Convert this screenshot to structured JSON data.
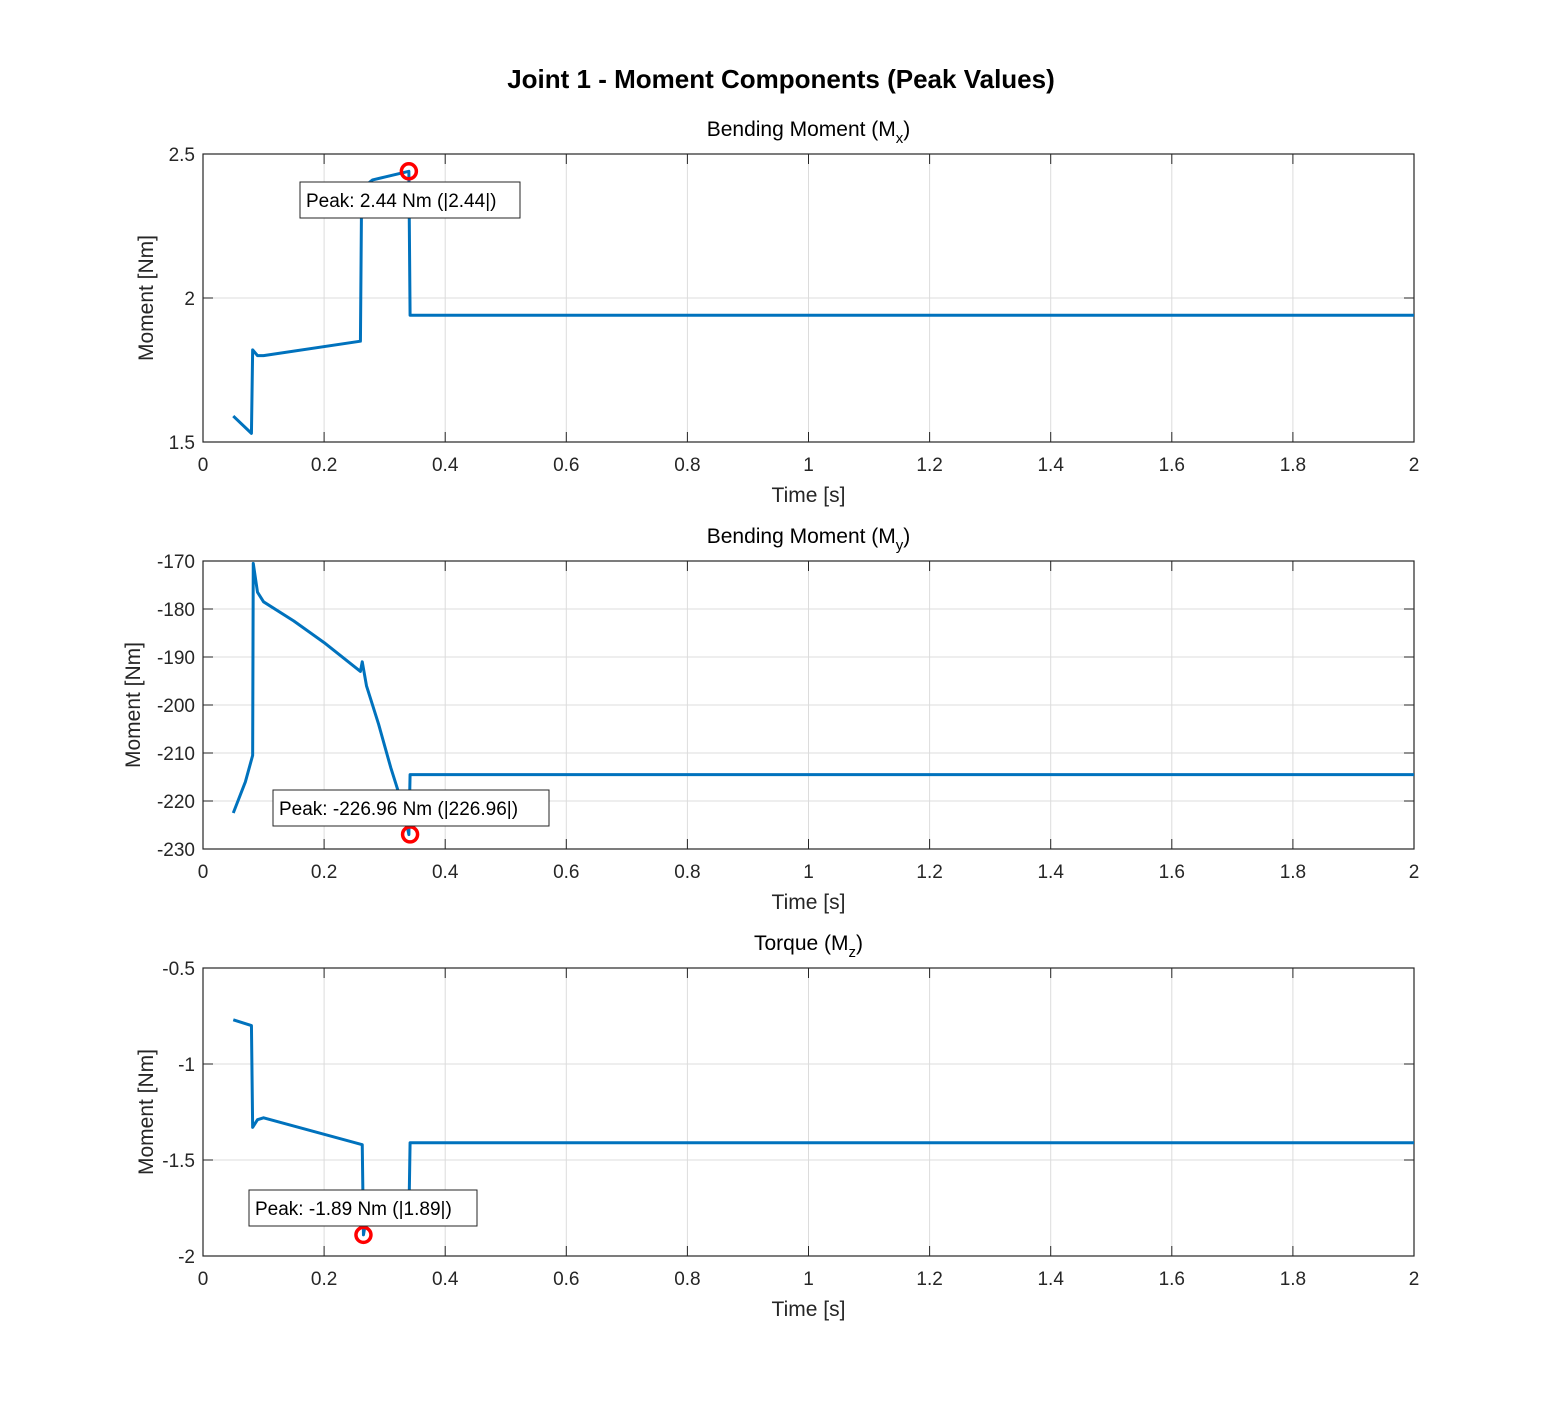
{
  "chart_data": [
    {
      "type": "line",
      "title": "Bending Moment (M",
      "title_sub": "x",
      "title_end": ")",
      "xlabel": "Time [s]",
      "ylabel": "Moment [Nm]",
      "xlim": [
        0,
        2
      ],
      "ylim": [
        1.5,
        2.5
      ],
      "xticks": [
        0,
        0.2,
        0.4,
        0.6,
        0.8,
        1,
        1.2,
        1.4,
        1.6,
        1.8,
        2
      ],
      "xtick_labels": [
        "0",
        "0.2",
        "0.4",
        "0.6",
        "0.8",
        "1",
        "1.2",
        "1.4",
        "1.6",
        "1.8",
        "2"
      ],
      "yticks": [
        1.5,
        2,
        2.5
      ],
      "ytick_labels": [
        "1.5",
        "2",
        "2.5"
      ],
      "grid": true,
      "series": [
        {
          "name": "Mx",
          "x": [
            0.05,
            0.08,
            0.082,
            0.09,
            0.1,
            0.26,
            0.262,
            0.28,
            0.3,
            0.32,
            0.34,
            0.342,
            2
          ],
          "y": [
            1.59,
            1.53,
            1.82,
            1.8,
            1.8,
            1.85,
            2.38,
            2.41,
            2.42,
            2.43,
            2.44,
            1.94,
            1.94
          ]
        }
      ],
      "peak": {
        "x": 0.34,
        "y": 2.44,
        "label": "Peak: 2.44 Nm (|2.44|)"
      }
    },
    {
      "type": "line",
      "title": "Bending Moment (M",
      "title_sub": "y",
      "title_end": ")",
      "xlabel": "Time [s]",
      "ylabel": "Moment [Nm]",
      "xlim": [
        0,
        2
      ],
      "ylim": [
        -230,
        -170
      ],
      "xticks": [
        0,
        0.2,
        0.4,
        0.6,
        0.8,
        1,
        1.2,
        1.4,
        1.6,
        1.8,
        2
      ],
      "xtick_labels": [
        "0",
        "0.2",
        "0.4",
        "0.6",
        "0.8",
        "1",
        "1.2",
        "1.4",
        "1.6",
        "1.8",
        "2"
      ],
      "yticks": [
        -230,
        -220,
        -210,
        -200,
        -190,
        -180,
        -170
      ],
      "ytick_labels": [
        "-230",
        "-220",
        "-210",
        "-200",
        "-190",
        "-180",
        "-170"
      ],
      "grid": true,
      "series": [
        {
          "name": "My",
          "x": [
            0.05,
            0.07,
            0.082,
            0.083,
            0.09,
            0.1,
            0.15,
            0.2,
            0.26,
            0.263,
            0.27,
            0.29,
            0.31,
            0.33,
            0.34,
            0.342,
            2
          ],
          "y": [
            -222.5,
            -216,
            -210.5,
            -170.5,
            -176.5,
            -178.5,
            -182.5,
            -187,
            -193,
            -191,
            -196,
            -204,
            -213,
            -221,
            -227,
            -214.5,
            -214.5
          ]
        }
      ],
      "peak": {
        "x": 0.342,
        "y": -226.96,
        "label": "Peak: -226.96 Nm (|226.96|)"
      }
    },
    {
      "type": "line",
      "title": "Torque (M",
      "title_sub": "z",
      "title_end": ")",
      "xlabel": "Time [s]",
      "ylabel": "Moment [Nm]",
      "xlim": [
        0,
        2
      ],
      "ylim": [
        -2,
        -0.5
      ],
      "xticks": [
        0,
        0.2,
        0.4,
        0.6,
        0.8,
        1,
        1.2,
        1.4,
        1.6,
        1.8,
        2
      ],
      "xtick_labels": [
        "0",
        "0.2",
        "0.4",
        "0.6",
        "0.8",
        "1",
        "1.2",
        "1.4",
        "1.6",
        "1.8",
        "2"
      ],
      "yticks": [
        -2,
        -1.5,
        -1,
        -0.5
      ],
      "ytick_labels": [
        "-2",
        "-1.5",
        "-1",
        "-0.5"
      ],
      "grid": true,
      "series": [
        {
          "name": "Mz",
          "x": [
            0.05,
            0.08,
            0.082,
            0.09,
            0.1,
            0.263,
            0.265,
            0.27,
            0.34,
            0.342,
            2
          ],
          "y": [
            -0.77,
            -0.8,
            -1.33,
            -1.29,
            -1.28,
            -1.42,
            -1.89,
            -1.8,
            -1.8,
            -1.41,
            -1.41
          ]
        }
      ],
      "peak": {
        "x": 0.265,
        "y": -1.89,
        "label": "Peak: -1.89 Nm (|1.89|)"
      }
    }
  ],
  "figure_title": "Joint 1 - Moment Components (Peak Values)",
  "colors": {
    "line": "#0072BD",
    "peak": "#FF0000",
    "grid": "#dcdcdc",
    "axis": "#262626"
  }
}
